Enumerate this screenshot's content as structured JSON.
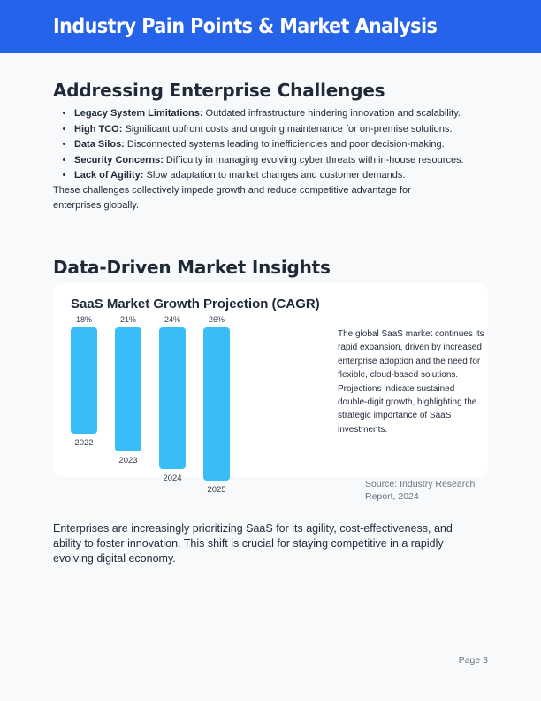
{
  "header": {
    "title": "Industry Pain Points & Market Analysis"
  },
  "section1": {
    "heading": "Addressing Enterprise Challenges",
    "items": [
      {
        "term": "Legacy System Limitations:",
        "text": " Outdated infrastructure hindering innovation and scalability."
      },
      {
        "term": "High TCO:",
        "text": " Significant upfront costs and ongoing maintenance for on-premise solutions."
      },
      {
        "term": "Data Silos:",
        "text": " Disconnected systems leading to inefficiencies and poor decision-making."
      },
      {
        "term": "Security Concerns:",
        "text": " Difficulty in managing evolving cyber threats with in-house resources."
      },
      {
        "term": "Lack of Agility:",
        "text": " Slow adaptation to market changes and customer demands."
      }
    ],
    "summary": "These challenges collectively impede growth and reduce competitive advantage for enterprises globally."
  },
  "section2": {
    "heading": "Data-Driven Market Insights",
    "description": "The global SaaS market continues its rapid expansion, driven by increased enterprise adoption and the need for flexible, cloud-based solutions. Projections indicate sustained double-digit growth, highlighting the strategic importance of SaaS investments.",
    "source": "Source: Industry Research Report, 2024",
    "closing": "Enterprises are increasingly prioritizing SaaS for its agility, cost-effectiveness, and ability to foster innovation. This shift is crucial for staying competitive in a rapidly evolving digital economy."
  },
  "chart_data": {
    "type": "bar",
    "title": "SaaS Market Growth Projection (CAGR)",
    "categories": [
      "2022",
      "2023",
      "2024",
      "2025"
    ],
    "values": [
      18,
      21,
      24,
      26
    ],
    "value_labels": [
      "18%",
      "21%",
      "24%",
      "26%"
    ],
    "xlabel": "",
    "ylabel": "",
    "grid": false,
    "legend": "none",
    "bar_color": "#38bdf8"
  },
  "footer": {
    "page": "Page 3"
  },
  "colors": {
    "header_bg": "#2563eb",
    "accent_bar": "#38bdf8"
  }
}
